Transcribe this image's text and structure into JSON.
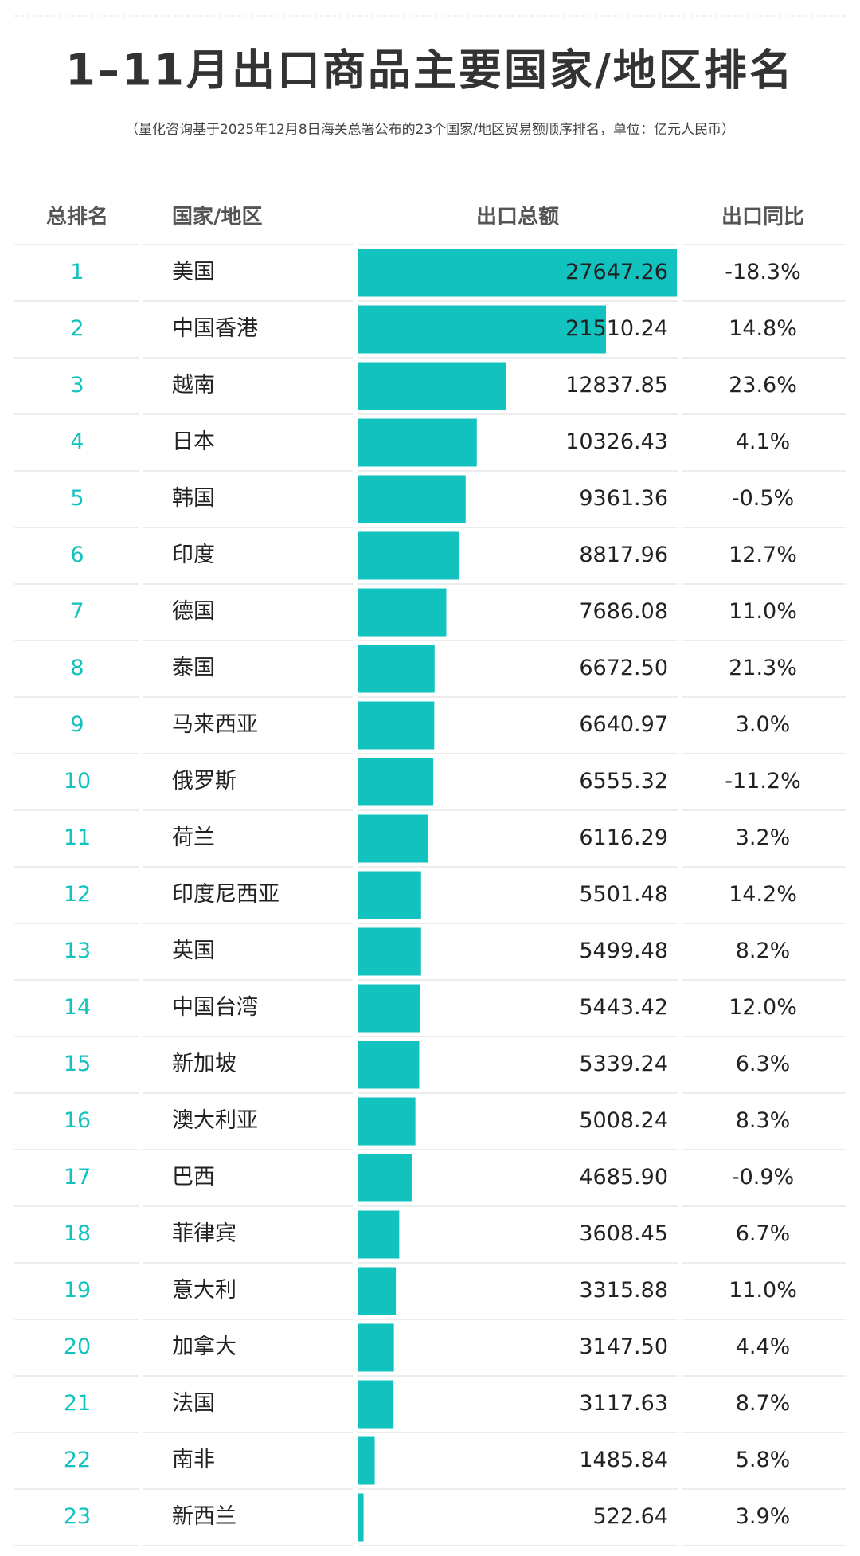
{
  "chart_data": {
    "type": "bar",
    "title": "1–11月出口商品主要国家/地区排名",
    "subtitle": "（量化咨询基于2025年12月8日海关总署公布的23个国家/地区贸易额顺序排名，单位：亿元人民币）",
    "columns": [
      "总排名",
      "国家/地区",
      "出口总额",
      "出口同比"
    ],
    "color": "#12c2bf",
    "ranks": [
      1,
      2,
      3,
      4,
      5,
      6,
      7,
      8,
      9,
      10,
      11,
      12,
      13,
      14,
      15,
      16,
      17,
      18,
      19,
      20,
      21,
      22,
      23
    ],
    "categories": [
      "美国",
      "中国香港",
      "越南",
      "日本",
      "韩国",
      "印度",
      "德国",
      "泰国",
      "马来西亚",
      "俄罗斯",
      "荷兰",
      "印度尼西亚",
      "英国",
      "中国台湾",
      "新加坡",
      "澳大利亚",
      "巴西",
      "菲律宾",
      "意大利",
      "加拿大",
      "法国",
      "南非",
      "新西兰"
    ],
    "values": [
      27647.26,
      21510.24,
      12837.85,
      10326.43,
      9361.36,
      8817.96,
      7686.08,
      6672.5,
      6640.97,
      6555.32,
      6116.29,
      5501.48,
      5499.48,
      5443.42,
      5339.24,
      5008.24,
      4685.9,
      3608.45,
      3315.88,
      3147.5,
      3117.63,
      1485.84,
      522.64
    ],
    "value_labels": [
      "27647.26",
      "21510.24",
      "12837.85",
      "10326.43",
      "9361.36",
      "8817.96",
      "7686.08",
      "6672.50",
      "6640.97",
      "6555.32",
      "6116.29",
      "5501.48",
      "5499.48",
      "5443.42",
      "5339.24",
      "5008.24",
      "4685.90",
      "3608.45",
      "3315.88",
      "3147.50",
      "3117.63",
      "1485.84",
      "522.64"
    ],
    "growth": [
      -18.3,
      14.8,
      23.6,
      4.1,
      -0.5,
      12.7,
      11.0,
      21.3,
      3.0,
      -11.2,
      3.2,
      14.2,
      8.2,
      12.0,
      6.3,
      8.3,
      -0.9,
      6.7,
      11.0,
      4.4,
      8.7,
      5.8,
      3.9
    ],
    "growth_labels": [
      "-18.3%",
      "14.8%",
      "23.6%",
      "4.1%",
      "-0.5%",
      "12.7%",
      "11.0%",
      "21.3%",
      "3.0%",
      "-11.2%",
      "3.2%",
      "14.2%",
      "8.2%",
      "12.0%",
      "6.3%",
      "8.3%",
      "-0.9%",
      "6.7%",
      "11.0%",
      "4.4%",
      "8.7%",
      "5.8%",
      "3.9%"
    ]
  }
}
